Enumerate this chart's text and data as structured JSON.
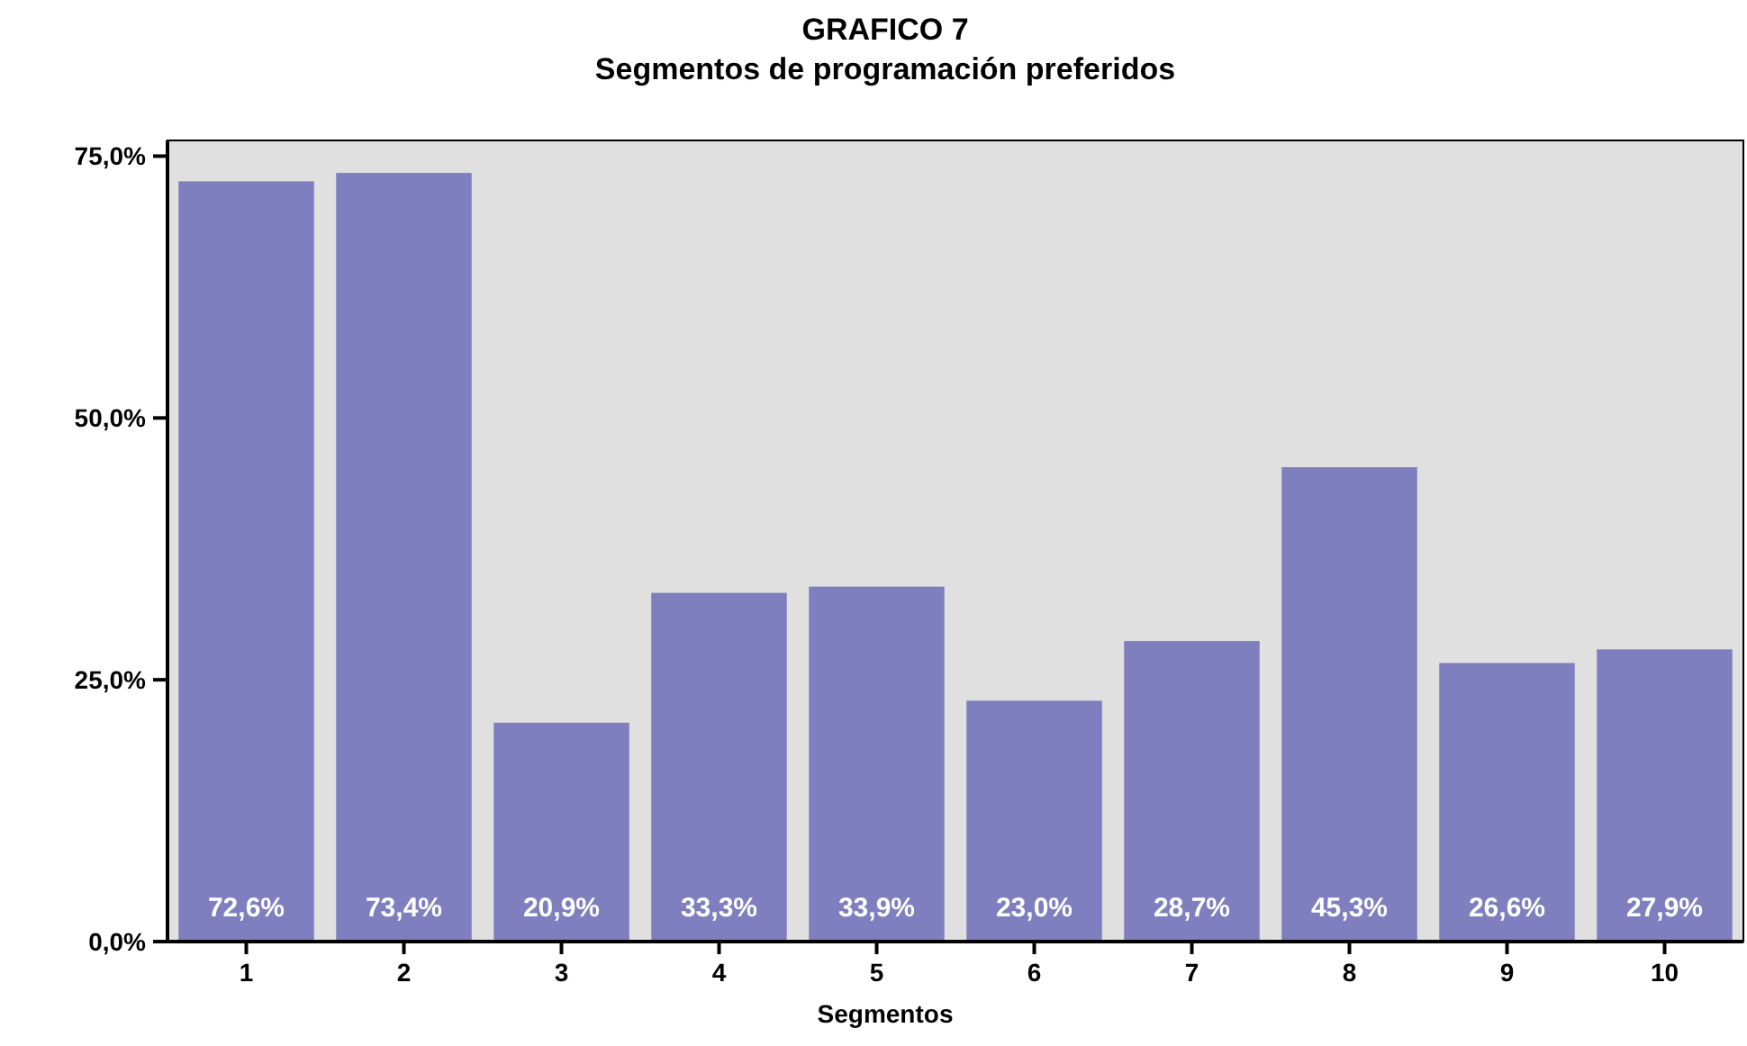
{
  "chart_data": {
    "type": "bar",
    "title": "GRAFICO 7",
    "subtitle": "Segmentos de programación preferidos",
    "xlabel": "Segmentos",
    "categories": [
      "1",
      "2",
      "3",
      "4",
      "5",
      "6",
      "7",
      "8",
      "9",
      "10"
    ],
    "values": [
      72.6,
      73.4,
      20.9,
      33.3,
      33.9,
      23.0,
      28.7,
      45.3,
      26.6,
      27.9
    ],
    "value_labels": [
      "72,6%",
      "73,4%",
      "20,9%",
      "33,3%",
      "33,9%",
      "23,0%",
      "28,7%",
      "45,3%",
      "26,6%",
      "27,9%"
    ],
    "color": "#7f7fbf",
    "ylim": [
      0,
      76.5
    ],
    "yticks": [
      {
        "value": 0,
        "label": "0,0%"
      },
      {
        "value": 25,
        "label": "25,0%"
      },
      {
        "value": 50,
        "label": "50,0%"
      },
      {
        "value": 75,
        "label": "75,0%"
      }
    ],
    "grid": false
  }
}
